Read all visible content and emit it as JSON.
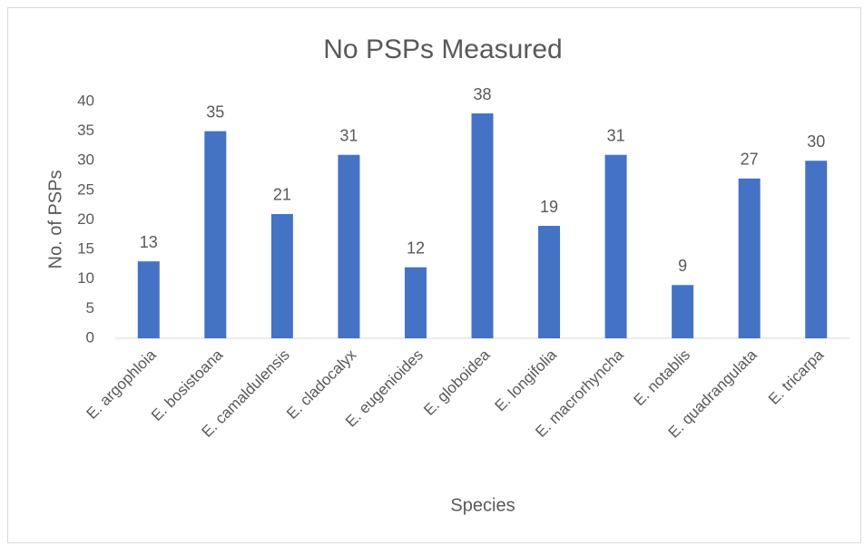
{
  "chart_data": {
    "type": "bar",
    "title": "No PSPs Measured",
    "x_label": "Species",
    "y_label": "No. of PSPs",
    "categories": [
      "E. argophloia",
      "E. bosistoana",
      "E. camaldulensis",
      "E. cladocalyx",
      "E. eugenioides",
      "E. globoidea",
      "E. longifolia",
      "E. macrorhyncha",
      "E. notablis",
      "E. quadrangulata",
      "E. tricarpa"
    ],
    "values": [
      13,
      35,
      21,
      31,
      12,
      38,
      19,
      31,
      9,
      27,
      30
    ],
    "color": "#4472c4",
    "ylim": [
      0,
      40
    ],
    "yticks": [
      0,
      5,
      10,
      15,
      20,
      25,
      30,
      35,
      40
    ],
    "grid": false
  }
}
